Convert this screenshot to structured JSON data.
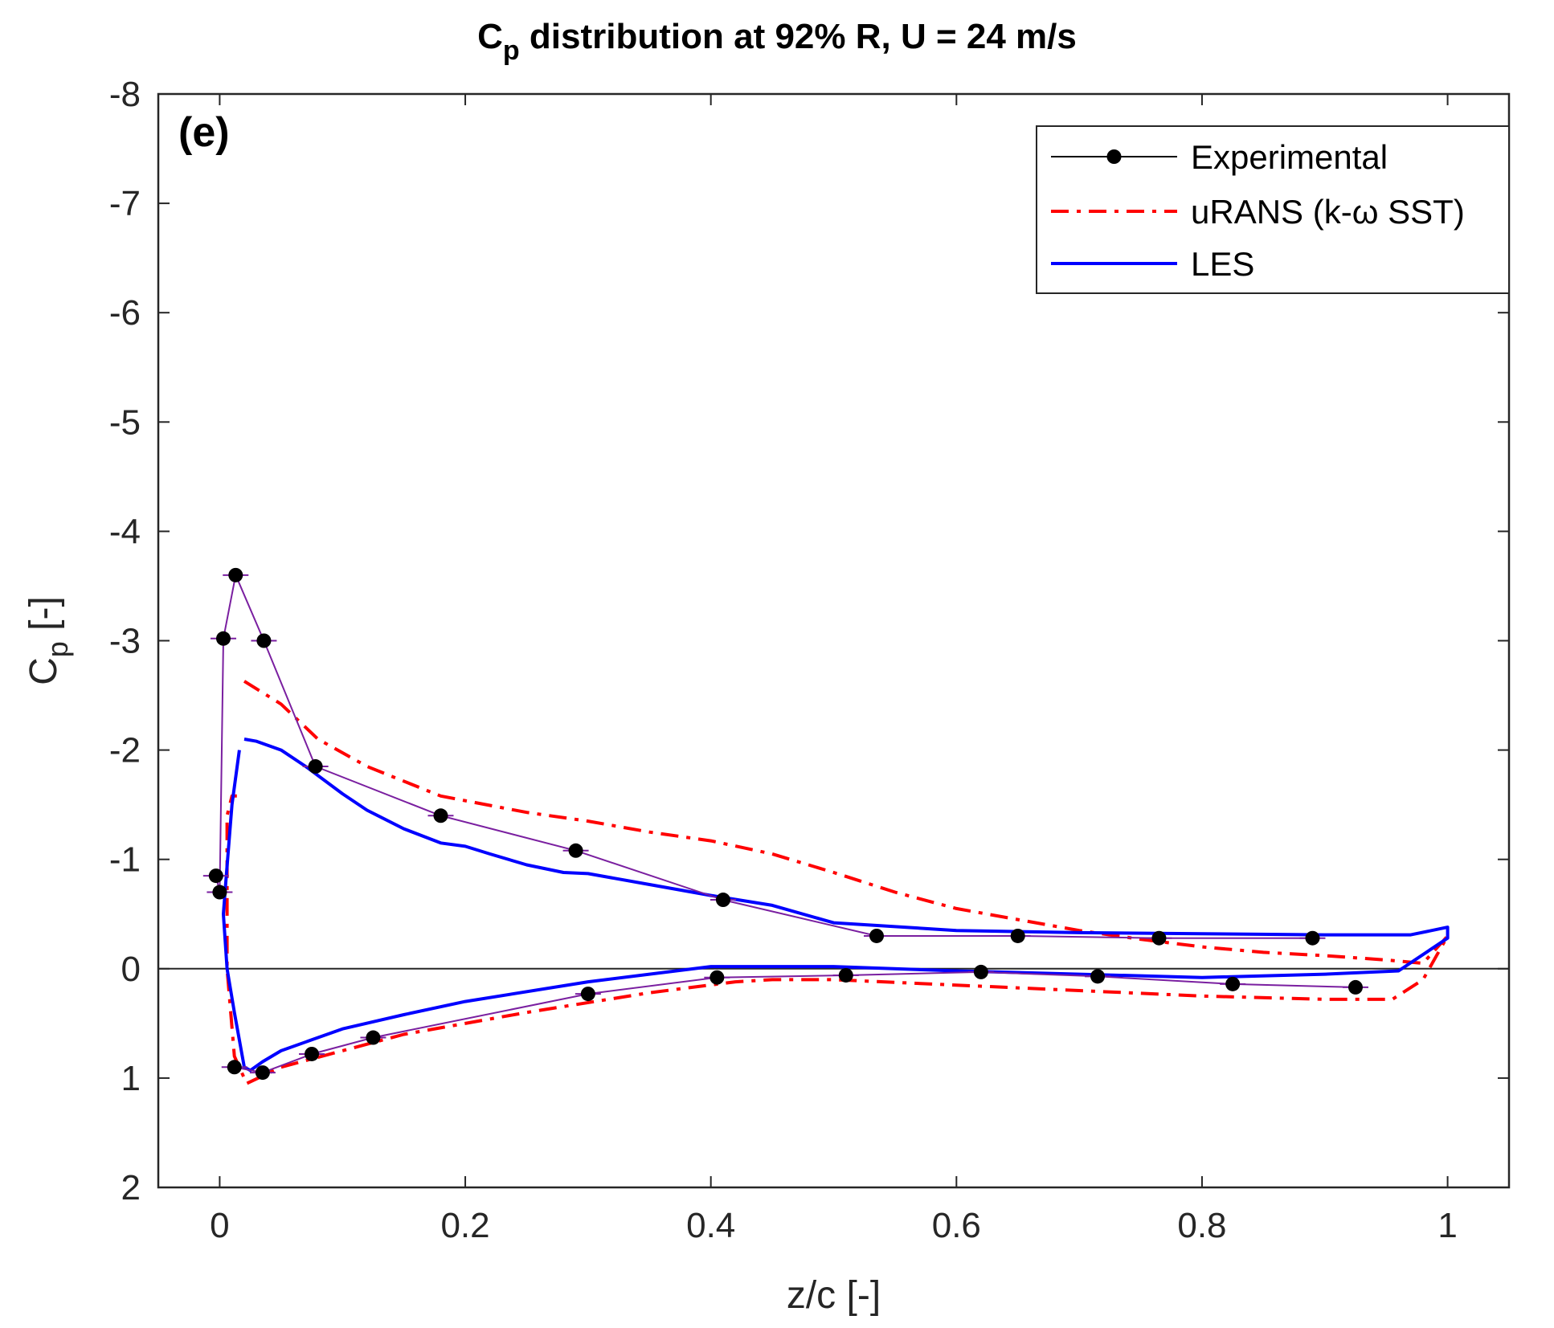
{
  "chart_data": {
    "type": "line",
    "title": "C_p distribution at 92% R, U = 24 m/s",
    "title_parts": {
      "main": "C",
      "sub": "p",
      "rest": " distribution at 92% R, U = 24 m/s"
    },
    "panel_label": "(e)",
    "xlabel": "z/c [-]",
    "ylabel": "C_p [-]",
    "ylabel_parts": {
      "main": "C",
      "sub": "p",
      "rest": " [-]"
    },
    "xlim": [
      -0.05,
      1.05
    ],
    "ylim": [
      2,
      -8
    ],
    "y_reversed": true,
    "xticks": [
      0,
      0.2,
      0.4,
      0.6,
      0.8,
      1
    ],
    "xtick_labels": [
      "0",
      "0.2",
      "0.4",
      "0.6",
      "0.8",
      "1"
    ],
    "yticks": [
      -8,
      -7,
      -6,
      -5,
      -4,
      -3,
      -2,
      -1,
      0,
      1,
      2
    ],
    "ytick_labels": [
      "-8",
      "-7",
      "-6",
      "-5",
      "-4",
      "-3",
      "-2",
      "-1",
      "0",
      "1",
      "2"
    ],
    "reference_line_y": 0,
    "legend_location": "top-right",
    "series": [
      {
        "name": "Experimental",
        "legend_label": "Experimental",
        "color": "#000000",
        "connector_color": "#7a1fa0",
        "style": "solid-marker",
        "upper": {
          "x": [
            -0.003,
            0.0,
            0.003,
            0.013,
            0.036,
            0.078,
            0.18,
            0.29,
            0.41,
            0.535,
            0.65,
            0.765,
            0.89
          ],
          "y": [
            -0.85,
            -0.7,
            -3.02,
            -3.6,
            -3.0,
            -1.85,
            -1.4,
            -1.08,
            -0.63,
            -0.3,
            -0.3,
            -0.28,
            -0.28
          ]
        },
        "lower": {
          "x": [
            0.012,
            0.035,
            0.075,
            0.125,
            0.3,
            0.405,
            0.51,
            0.62,
            0.715,
            0.825,
            0.925
          ],
          "y": [
            0.9,
            0.95,
            0.78,
            0.63,
            0.23,
            0.08,
            0.06,
            0.03,
            0.07,
            0.14,
            0.17
          ]
        }
      },
      {
        "name": "uRANS (k-ω SST)",
        "legend_label": "uRANS (k-ω SST)",
        "color": "#ff0000",
        "style": "dash-dot",
        "x": [
          0.02,
          0.05,
          0.08,
          0.12,
          0.18,
          0.25,
          0.3,
          0.35,
          0.4,
          0.45,
          0.5,
          0.55,
          0.6,
          0.65,
          0.7,
          0.75,
          0.8,
          0.85,
          0.9,
          0.95,
          0.98,
          1.0,
          0.98,
          0.955,
          0.9,
          0.8,
          0.7,
          0.6,
          0.5,
          0.45,
          0.42,
          0.35,
          0.25,
          0.15,
          0.1,
          0.05,
          0.022,
          0.012,
          0.006,
          0.006,
          0.01,
          0.014
        ],
        "y": [
          -2.63,
          -2.42,
          -2.1,
          -1.85,
          -1.58,
          -1.43,
          -1.35,
          -1.25,
          -1.17,
          -1.05,
          -0.88,
          -0.7,
          -0.55,
          -0.45,
          -0.35,
          -0.27,
          -0.2,
          -0.15,
          -0.12,
          -0.08,
          -0.05,
          -0.3,
          0.1,
          0.28,
          0.28,
          0.25,
          0.2,
          0.15,
          0.1,
          0.1,
          0.12,
          0.22,
          0.4,
          0.6,
          0.75,
          0.9,
          1.05,
          0.8,
          0.0,
          -1.4,
          -1.58,
          -1.58
        ]
      },
      {
        "name": "LES",
        "legend_label": "LES",
        "color": "#0000ff",
        "style": "solid",
        "x": [
          0.02,
          0.03,
          0.05,
          0.07,
          0.1,
          0.12,
          0.15,
          0.18,
          0.2,
          0.22,
          0.25,
          0.28,
          0.3,
          0.35,
          0.4,
          0.45,
          0.5,
          0.6,
          0.7,
          0.8,
          0.9,
          0.97,
          1.0,
          1.0,
          0.96,
          0.9,
          0.8,
          0.7,
          0.6,
          0.5,
          0.4,
          0.3,
          0.2,
          0.15,
          0.1,
          0.075,
          0.05,
          0.035,
          0.025,
          0.02,
          0.012,
          0.006,
          0.003,
          0.005,
          0.01,
          0.016
        ],
        "y": [
          -2.1,
          -2.08,
          -2.0,
          -1.85,
          -1.6,
          -1.45,
          -1.28,
          -1.15,
          -1.12,
          -1.05,
          -0.95,
          -0.88,
          -0.87,
          -0.77,
          -0.67,
          -0.58,
          -0.42,
          -0.35,
          -0.33,
          -0.32,
          -0.31,
          -0.31,
          -0.38,
          -0.28,
          0.02,
          0.05,
          0.08,
          0.05,
          0.02,
          -0.02,
          -0.02,
          0.12,
          0.3,
          0.42,
          0.55,
          0.65,
          0.75,
          0.85,
          0.93,
          0.9,
          0.4,
          0.0,
          -0.5,
          -0.8,
          -1.5,
          -2.0
        ]
      }
    ]
  }
}
